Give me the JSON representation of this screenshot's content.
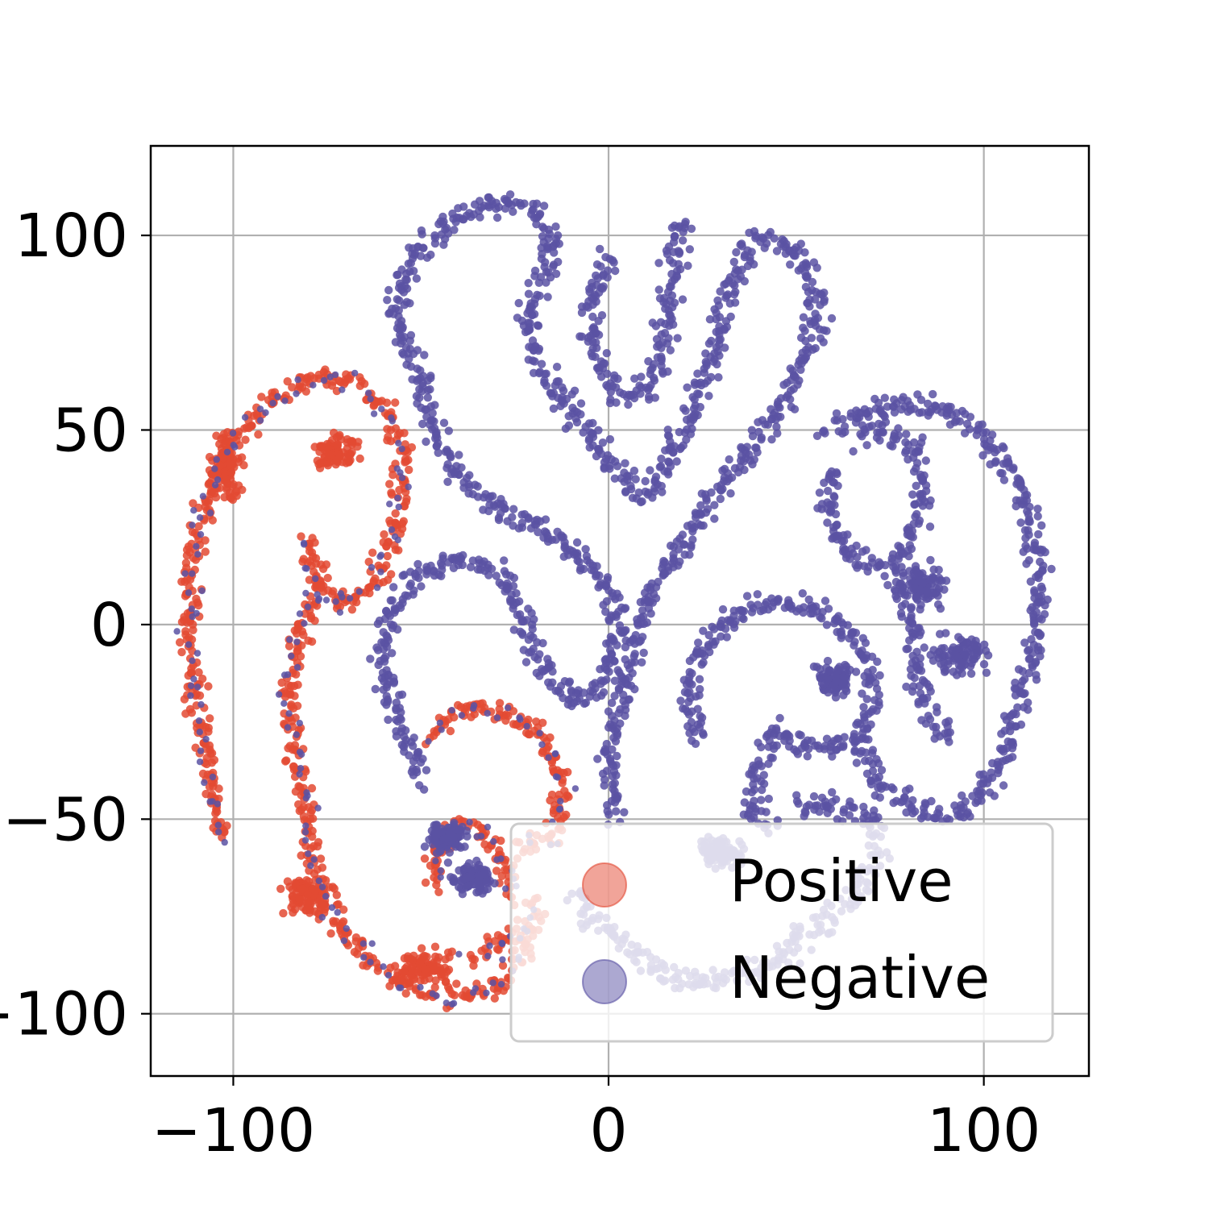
{
  "chart_data": {
    "type": "scatter",
    "title": "",
    "xlabel": "",
    "ylabel": "",
    "xlim": [
      -122,
      128
    ],
    "ylim": [
      -116,
      123
    ],
    "grid": true,
    "xticks": [
      {
        "value": -100,
        "label": "−100"
      },
      {
        "value": 0,
        "label": "0"
      },
      {
        "value": 100,
        "label": "100"
      }
    ],
    "yticks": [
      {
        "value": 100,
        "label": "100"
      },
      {
        "value": 50,
        "label": "50"
      },
      {
        "value": 0,
        "label": "0"
      },
      {
        "value": -50,
        "label": "−50"
      },
      {
        "value": -100,
        "label": "−100"
      }
    ],
    "legend": {
      "placement": "lower right",
      "entries": [
        {
          "label": "Positive",
          "color": "#e34a33"
        },
        {
          "label": "Negative",
          "color": "#5a52a3"
        }
      ]
    },
    "series": [
      {
        "name": "Positive",
        "color": "#e34a33",
        "description_of_clusters": "left arc and lower-middle interleaved arcs",
        "paths": [
          [
            [
              -103,
              -55
            ],
            [
              -106,
              -40
            ],
            [
              -110,
              -20
            ],
            [
              -112,
              0
            ],
            [
              -111,
              20
            ],
            [
              -106,
              35
            ],
            [
              -99,
              48
            ],
            [
              -89,
              58
            ],
            [
              -78,
              64
            ],
            [
              -67,
              62
            ],
            [
              -59,
              55
            ],
            [
              -55,
              45
            ],
            [
              -55,
              32
            ],
            [
              -58,
              20
            ],
            [
              -63,
              10
            ],
            [
              -70,
              5
            ],
            [
              -76,
              8
            ],
            [
              -79,
              16
            ],
            [
              -81,
              23
            ]
          ],
          [
            [
              -77,
              10
            ],
            [
              -82,
              0
            ],
            [
              -85,
              -15
            ],
            [
              -84,
              -32
            ],
            [
              -80,
              -48
            ],
            [
              -78,
              -65
            ],
            [
              -72,
              -78
            ],
            [
              -63,
              -87
            ],
            [
              -54,
              -92
            ],
            [
              -44,
              -95
            ],
            [
              -35,
              -95
            ],
            [
              -28,
              -91
            ],
            [
              -24,
              -85
            ],
            [
              -20,
              -78
            ]
          ],
          [
            [
              -25,
              -70
            ],
            [
              -28,
              -60
            ],
            [
              -34,
              -53
            ],
            [
              -42,
              -52
            ],
            [
              -46,
              -58
            ],
            [
              -46,
              -68
            ]
          ],
          [
            [
              -48,
              -28
            ],
            [
              -40,
              -22
            ],
            [
              -30,
              -22
            ],
            [
              -20,
              -26
            ],
            [
              -14,
              -36
            ],
            [
              -12,
              -48
            ],
            [
              -16,
              -55
            ],
            [
              -24,
              -58
            ]
          ],
          [
            [
              -36,
              -85
            ],
            [
              -30,
              -82
            ],
            [
              -22,
              -78
            ],
            [
              -18,
              -72
            ]
          ]
        ],
        "blobs": [
          [
            [
              -102,
              40
            ],
            [
              6,
              12
            ]
          ],
          [
            [
              -73,
              45
            ],
            [
              8,
              6
            ]
          ],
          [
            [
              -80,
              -70
            ],
            [
              9,
              8
            ]
          ],
          [
            [
              -50,
              -88
            ],
            [
              10,
              6
            ]
          ]
        ]
      },
      {
        "name": "Negative",
        "color": "#5a52a3",
        "paths": [
          [
            [
              -50,
              -40
            ],
            [
              -56,
              -25
            ],
            [
              -60,
              -10
            ],
            [
              -58,
              3
            ],
            [
              -52,
              12
            ],
            [
              -42,
              16
            ],
            [
              -30,
              14
            ],
            [
              -24,
              5
            ],
            [
              -20,
              -5
            ],
            [
              -16,
              -14
            ],
            [
              -8,
              -20
            ],
            [
              -2,
              -15
            ],
            [
              2,
              -5
            ],
            [
              2,
              5
            ],
            [
              -4,
              14
            ],
            [
              -12,
              22
            ],
            [
              -20,
              26
            ],
            [
              -30,
              30
            ],
            [
              -40,
              38
            ],
            [
              -46,
              48
            ],
            [
              -48,
              58
            ],
            [
              -52,
              68
            ],
            [
              -57,
              78
            ],
            [
              -55,
              90
            ],
            [
              -46,
              101
            ],
            [
              -34,
              108
            ],
            [
              -22,
              108
            ],
            [
              -15,
              100
            ],
            [
              -17,
              90
            ],
            [
              -22,
              80
            ],
            [
              -20,
              70
            ],
            [
              -14,
              60
            ],
            [
              -6,
              50
            ],
            [
              2,
              40
            ],
            [
              8,
              33
            ],
            [
              15,
              40
            ],
            [
              21,
              52
            ],
            [
              26,
              65
            ],
            [
              30,
              78
            ],
            [
              34,
              90
            ],
            [
              40,
              99
            ],
            [
              48,
              98
            ],
            [
              54,
              90
            ],
            [
              56,
              80
            ],
            [
              52,
              68
            ],
            [
              46,
              55
            ],
            [
              38,
              44
            ],
            [
              30,
              35
            ],
            [
              24,
              27
            ],
            [
              18,
              18
            ],
            [
              10,
              5
            ],
            [
              6,
              -10
            ],
            [
              2,
              -25
            ],
            [
              0,
              -40
            ],
            [
              2,
              -50
            ]
          ],
          [
            [
              -10,
              -70
            ],
            [
              2,
              -80
            ],
            [
              15,
              -90
            ],
            [
              30,
              -92
            ],
            [
              45,
              -86
            ],
            [
              58,
              -76
            ],
            [
              68,
              -66
            ],
            [
              72,
              -58
            ],
            [
              70,
              -50
            ],
            [
              62,
              -46
            ],
            [
              50,
              -46
            ]
          ],
          [
            [
              24,
              -30
            ],
            [
              22,
              -15
            ],
            [
              26,
              -3
            ],
            [
              38,
              5
            ],
            [
              52,
              5
            ],
            [
              64,
              -2
            ],
            [
              70,
              -12
            ],
            [
              70,
              -25
            ],
            [
              62,
              -32
            ],
            [
              52,
              -32
            ],
            [
              44,
              -27
            ],
            [
              40,
              -35
            ],
            [
              38,
              -48
            ],
            [
              44,
              -52
            ]
          ],
          [
            [
              58,
              50
            ],
            [
              68,
              55
            ],
            [
              82,
              57
            ],
            [
              96,
              52
            ],
            [
              106,
              42
            ],
            [
              112,
              28
            ],
            [
              115,
              12
            ],
            [
              114,
              -3
            ],
            [
              110,
              -20
            ],
            [
              104,
              -38
            ],
            [
              94,
              -48
            ],
            [
              82,
              -48
            ],
            [
              72,
              -40
            ],
            [
              66,
              -30
            ]
          ],
          [
            [
              60,
              40
            ],
            [
              58,
              30
            ],
            [
              62,
              20
            ],
            [
              70,
              15
            ],
            [
              78,
              18
            ],
            [
              82,
              25
            ],
            [
              84,
              35
            ],
            [
              82,
              45
            ],
            [
              74,
              50
            ],
            [
              66,
              48
            ]
          ],
          [
            [
              76,
              14
            ],
            [
              80,
              5
            ],
            [
              82,
              -10
            ],
            [
              85,
              -22
            ],
            [
              90,
              -30
            ]
          ],
          [
            [
              0,
              95
            ],
            [
              -4,
              85
            ],
            [
              -5,
              75
            ],
            [
              -2,
              65
            ],
            [
              4,
              58
            ],
            [
              10,
              60
            ],
            [
              14,
              70
            ],
            [
              16,
              82
            ],
            [
              18,
              95
            ],
            [
              20,
              105
            ]
          ]
        ],
        "blobs": [
          [
            [
              -43,
              -55
            ],
            [
              7,
              5
            ]
          ],
          [
            [
              -36,
              -65
            ],
            [
              8,
              6
            ]
          ],
          [
            [
              60,
              -14
            ],
            [
              8,
              6
            ]
          ],
          [
            [
              94,
              -8
            ],
            [
              10,
              8
            ]
          ],
          [
            [
              30,
              -58
            ],
            [
              9,
              6
            ]
          ],
          [
            [
              84,
              10
            ],
            [
              8,
              8
            ]
          ]
        ]
      }
    ]
  }
}
